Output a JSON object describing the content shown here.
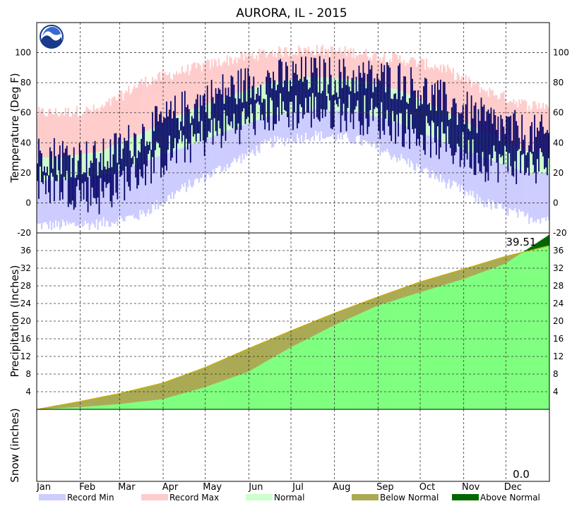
{
  "chart_data": {
    "type": "area",
    "title": "AURORA, IL - 2015",
    "months": [
      "Jan",
      "Feb",
      "Mar",
      "Apr",
      "May",
      "Jun",
      "Jul",
      "Aug",
      "Sep",
      "Oct",
      "Nov",
      "Dec"
    ],
    "temperature": {
      "ylabel": "Temperature (Deg F)",
      "ylim": [
        -20,
        120
      ],
      "ticks": [
        -20,
        0,
        20,
        40,
        60,
        80,
        100
      ],
      "record_min_monthly_low": [
        -15,
        -14,
        -8,
        10,
        25,
        40,
        45,
        42,
        30,
        15,
        0,
        -10
      ],
      "record_max_monthly_high": [
        60,
        62,
        80,
        88,
        95,
        100,
        102,
        100,
        96,
        90,
        75,
        65
      ],
      "normal_low_by_month": [
        15,
        18,
        27,
        37,
        48,
        58,
        62,
        61,
        53,
        41,
        30,
        20
      ],
      "normal_high_by_month": [
        30,
        34,
        46,
        60,
        71,
        80,
        84,
        82,
        75,
        62,
        47,
        34
      ],
      "observed_high_by_month": [
        32,
        28,
        45,
        62,
        75,
        82,
        85,
        83,
        82,
        68,
        55,
        45
      ],
      "observed_low_by_month": [
        12,
        5,
        22,
        38,
        50,
        60,
        62,
        60,
        52,
        40,
        28,
        25
      ]
    },
    "precipitation": {
      "ylabel": "Precipitation (Inches)",
      "ticks": [
        4,
        8,
        12,
        16,
        20,
        24,
        28,
        32,
        36
      ],
      "ylim": [
        0,
        40
      ],
      "annotation": "39.51",
      "cumulative_observed_month_end": [
        0.5,
        1.2,
        2.3,
        5.0,
        8.5,
        14.0,
        19.0,
        23.5,
        26.5,
        29.5,
        33.0,
        39.51
      ],
      "cumulative_normal_month_end": [
        1.8,
        3.6,
        6.0,
        9.5,
        13.8,
        17.8,
        21.8,
        25.5,
        28.9,
        31.8,
        34.7,
        37.1
      ]
    },
    "snow": {
      "ylabel": "Snow (inches)",
      "annotation": "0.0",
      "cumulative_total": 0.0
    },
    "legend": [
      "Record Min",
      "Record Max",
      "Normal",
      "Below Normal",
      "Above Normal"
    ],
    "colors": {
      "record_min": "#ccccff",
      "record_max": "#ffcccc",
      "normal": "#ccffcc",
      "observed": "#000066",
      "precip_normal": "#7fff7f",
      "below_normal": "#aaaa55",
      "above_normal": "#006600"
    }
  }
}
